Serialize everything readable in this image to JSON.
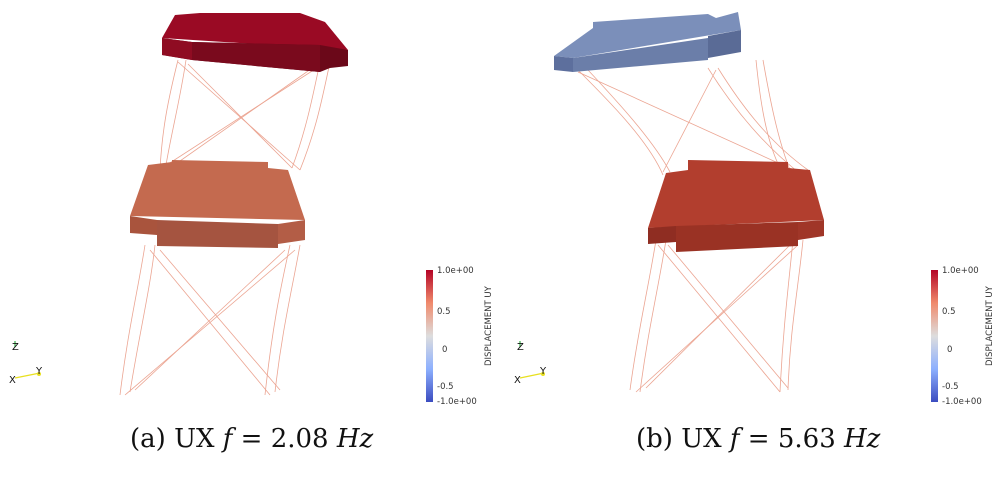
{
  "figures": [
    {
      "caption": {
        "label": "(a)",
        "mode": "UX",
        "freq_var": "f",
        "equals": "=",
        "freq_value": "2.08",
        "unit": "Hz"
      },
      "top_slab_color": "#8f0c22",
      "bottom_slab_color": "#c46a4f",
      "colorbar": {
        "title": "DISPLACEMENT UY",
        "ticks": [
          "1.0e+00",
          "0.5",
          "0",
          "-0.5",
          "-1.0e+00"
        ],
        "min": -1.0,
        "max": 1.0,
        "top_color": "#b40426",
        "mid_color": "#dddddd",
        "bottom_color": "#3b4cc0"
      },
      "axes": {
        "z": "Z",
        "x": "X",
        "y": "Y"
      }
    },
    {
      "caption": {
        "label": "(b)",
        "mode": "UX",
        "freq_var": "f",
        "equals": "=",
        "freq_value": "5.63",
        "unit": "Hz"
      },
      "top_slab_color": "#7b8fba",
      "bottom_slab_color": "#b23e2e",
      "colorbar": {
        "title": "DISPLACEMENT UY",
        "ticks": [
          "1.0e+00",
          "0.5",
          "0",
          "-0.5",
          "-1.0e+00"
        ],
        "min": -1.0,
        "max": 1.0,
        "top_color": "#b40426",
        "mid_color": "#dddddd",
        "bottom_color": "#3b4cc0"
      },
      "axes": {
        "z": "Z",
        "x": "X",
        "y": "Y"
      }
    }
  ]
}
